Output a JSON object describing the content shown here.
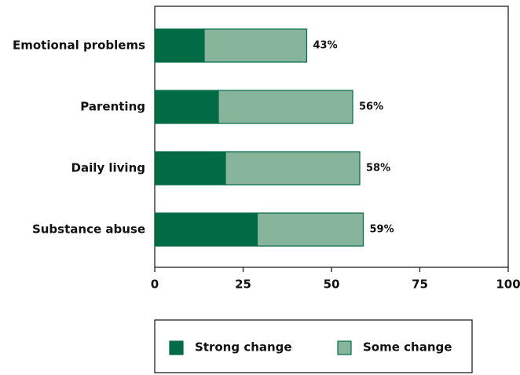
{
  "chart_data": {
    "type": "stacked-bar-horizontal",
    "categories": [
      "Emotional problems",
      "Parenting",
      "Daily living",
      "Substance abuse"
    ],
    "series": [
      {
        "name": "Strong change",
        "color": "#006b45",
        "values": [
          14,
          18,
          20,
          29
        ]
      },
      {
        "name": "Some change",
        "color": "#86b59b",
        "values": [
          29,
          38,
          38,
          30
        ]
      }
    ],
    "totals": {
      "values": [
        43,
        56,
        58,
        59
      ],
      "value_labels": [
        "43%",
        "56%",
        "58%",
        "59%"
      ]
    },
    "xlim": [
      0,
      100
    ],
    "xticks": [
      0,
      25,
      50,
      75,
      100
    ]
  }
}
